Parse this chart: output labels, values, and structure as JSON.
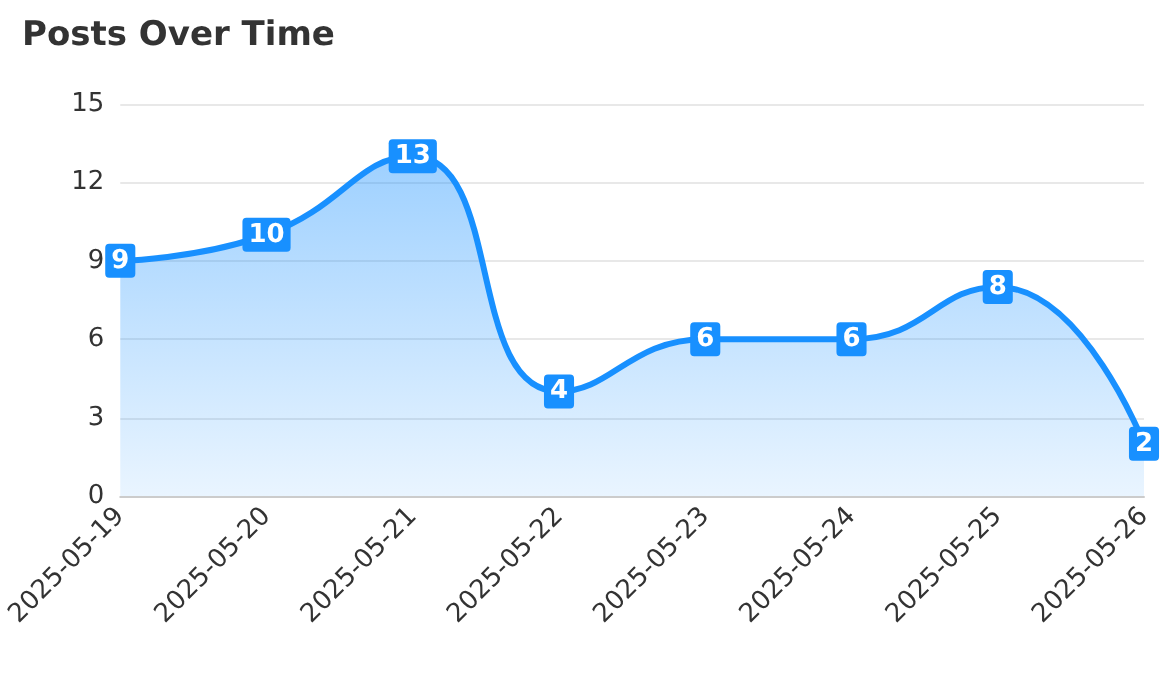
{
  "chart_data": {
    "type": "area",
    "title": "Posts Over Time",
    "categories": [
      "2025-05-19",
      "2025-05-20",
      "2025-05-21",
      "2025-05-22",
      "2025-05-23",
      "2025-05-24",
      "2025-05-25",
      "2025-05-26"
    ],
    "series": [
      {
        "color": "#1890ff",
        "values": [
          9,
          10,
          13,
          4,
          6,
          6,
          8,
          2
        ]
      }
    ],
    "ylim": [
      0,
      15
    ],
    "yticks": [
      0,
      3,
      6,
      9,
      12,
      15
    ],
    "grid": "y",
    "data_labels": true,
    "marker": "square",
    "line_style": "solid"
  }
}
